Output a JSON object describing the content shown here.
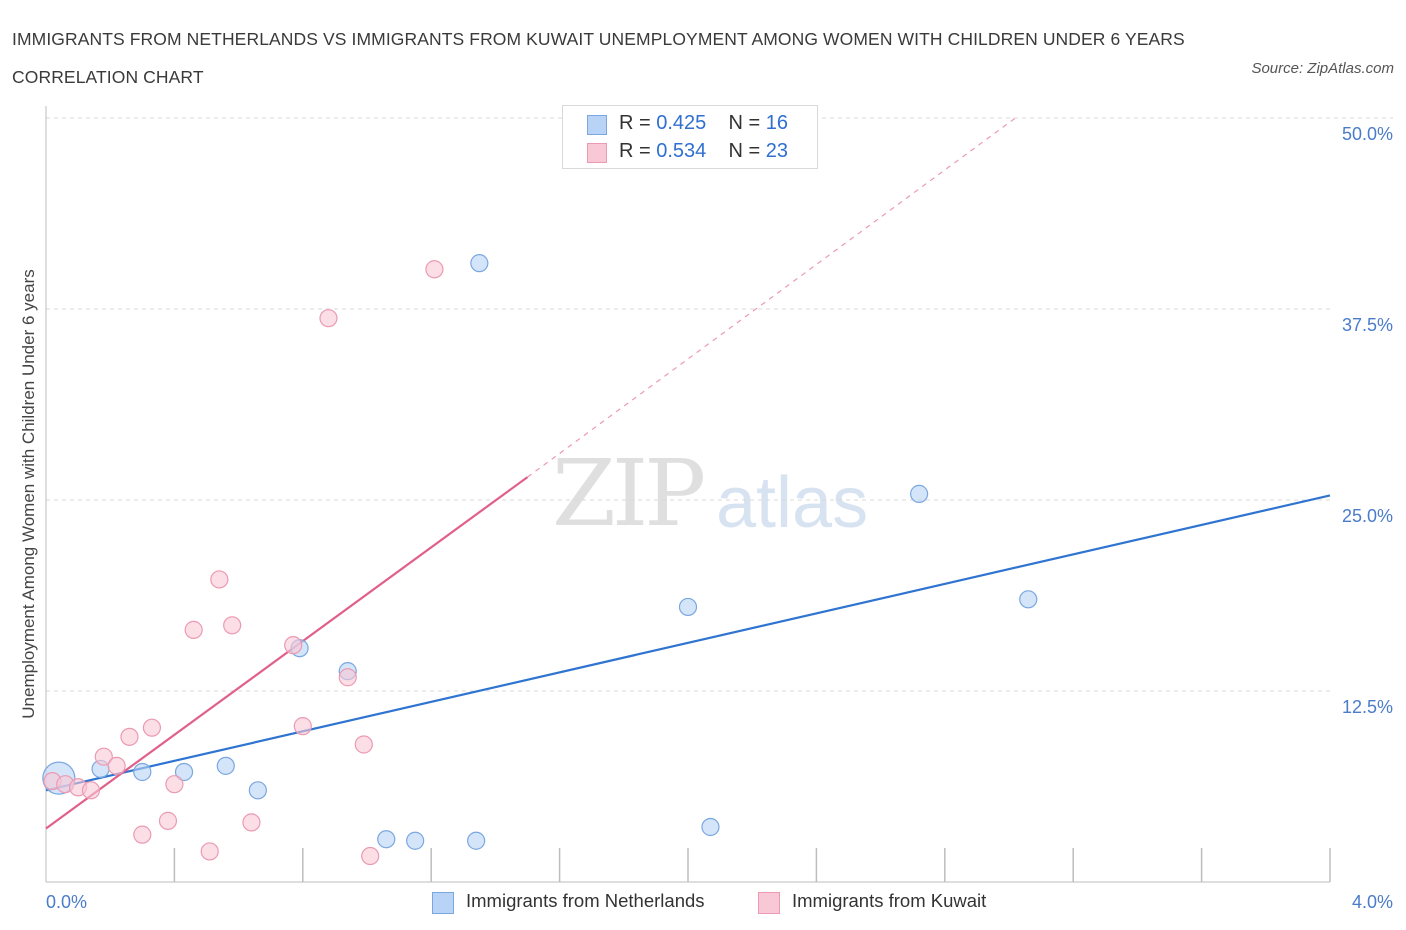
{
  "title": "IMMIGRANTS FROM NETHERLANDS VS IMMIGRANTS FROM KUWAIT UNEMPLOYMENT AMONG WOMEN WITH CHILDREN UNDER 6 YEARS CORRELATION CHART",
  "source": "Source: ZipAtlas.com",
  "watermark": {
    "zip": "ZIP",
    "atlas": "atlas"
  },
  "stats": [
    {
      "r_label": "R = ",
      "r_value": "0.425",
      "n_label": "N = ",
      "n_value": "16"
    },
    {
      "r_label": "R = ",
      "r_value": "0.534",
      "n_label": "N = ",
      "n_value": "23"
    }
  ],
  "legend": [
    "Immigrants from Netherlands",
    "Immigrants from Kuwait"
  ],
  "colors": {
    "netherlands_fill": "#b8d3f5",
    "netherlands_stroke": "#7aa7e0",
    "netherlands_line": "#2f74d0",
    "kuwait_fill": "#f9c8d6",
    "kuwait_stroke": "#eb9ab2",
    "kuwait_line": "#e0608a",
    "tick": "#4a7cc9",
    "grid": "#d8d8d8"
  },
  "chart_data": {
    "type": "scatter",
    "title": "IMMIGRANTS FROM NETHERLANDS VS IMMIGRANTS FROM KUWAIT UNEMPLOYMENT AMONG WOMEN WITH CHILDREN UNDER 6 YEARS CORRELATION CHART",
    "xlabel": "",
    "ylabel": "Unemployment Among Women with Children Under 6 years",
    "xlim": [
      0,
      4.0
    ],
    "ylim": [
      0,
      50
    ],
    "x_tick_labels": [
      "0.0%",
      "4.0%"
    ],
    "y_ticks": [
      12.5,
      25.0,
      37.5,
      50.0
    ],
    "y_tick_labels": [
      "12.5%",
      "25.0%",
      "37.5%",
      "50.0%"
    ],
    "grid": "horizontal dashed",
    "legend_position": "bottom-center",
    "series": [
      {
        "name": "Immigrants from Netherlands",
        "points": [
          {
            "x": 0.04,
            "y": 6.8,
            "big": true
          },
          {
            "x": 0.17,
            "y": 7.4
          },
          {
            "x": 0.3,
            "y": 7.2
          },
          {
            "x": 0.43,
            "y": 7.2
          },
          {
            "x": 0.56,
            "y": 7.6
          },
          {
            "x": 0.66,
            "y": 6.0
          },
          {
            "x": 0.79,
            "y": 15.3
          },
          {
            "x": 0.94,
            "y": 13.8
          },
          {
            "x": 1.06,
            "y": 2.8
          },
          {
            "x": 1.15,
            "y": 2.7
          },
          {
            "x": 1.34,
            "y": 2.7
          },
          {
            "x": 1.35,
            "y": 40.5
          },
          {
            "x": 2.0,
            "y": 18.0
          },
          {
            "x": 2.07,
            "y": 3.6
          },
          {
            "x": 2.72,
            "y": 25.4
          },
          {
            "x": 3.06,
            "y": 18.5
          }
        ],
        "trend": {
          "x": [
            0.0,
            4.0
          ],
          "y": [
            6.0,
            25.3
          ]
        }
      },
      {
        "name": "Immigrants from Kuwait",
        "points": [
          {
            "x": 0.02,
            "y": 6.6
          },
          {
            "x": 0.06,
            "y": 6.4
          },
          {
            "x": 0.1,
            "y": 6.2
          },
          {
            "x": 0.14,
            "y": 6.0
          },
          {
            "x": 0.18,
            "y": 8.2
          },
          {
            "x": 0.22,
            "y": 7.6
          },
          {
            "x": 0.26,
            "y": 9.5
          },
          {
            "x": 0.3,
            "y": 3.1
          },
          {
            "x": 0.33,
            "y": 10.1
          },
          {
            "x": 0.38,
            "y": 4.0
          },
          {
            "x": 0.4,
            "y": 6.4
          },
          {
            "x": 0.46,
            "y": 16.5
          },
          {
            "x": 0.51,
            "y": 2.0
          },
          {
            "x": 0.54,
            "y": 19.8
          },
          {
            "x": 0.58,
            "y": 16.8
          },
          {
            "x": 0.64,
            "y": 3.9
          },
          {
            "x": 0.77,
            "y": 15.5
          },
          {
            "x": 0.8,
            "y": 10.2
          },
          {
            "x": 0.88,
            "y": 36.9
          },
          {
            "x": 0.94,
            "y": 13.4
          },
          {
            "x": 0.99,
            "y": 9.0
          },
          {
            "x": 1.01,
            "y": 1.7
          },
          {
            "x": 1.21,
            "y": 40.1
          }
        ],
        "trend": {
          "x": [
            0.0,
            1.5
          ],
          "y": [
            3.5,
            26.5
          ]
        },
        "trend_extension": {
          "x": [
            1.5,
            3.02
          ],
          "y": [
            26.5,
            50.0
          ]
        }
      }
    ]
  }
}
